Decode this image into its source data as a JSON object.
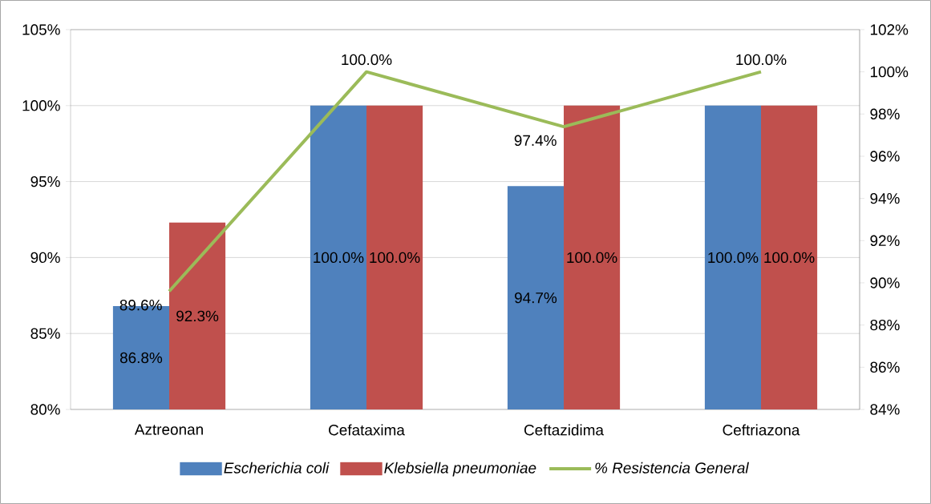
{
  "chart_data": {
    "type": "bar",
    "categories": [
      "Aztreonan",
      "Cefataxima",
      "Ceftazidima",
      "Ceftriazona"
    ],
    "series": [
      {
        "name": "Escherichia coli",
        "color": "#4f81bd",
        "values": [
          86.8,
          100,
          94.7,
          100
        ],
        "value_labels": [
          "86.8%",
          "100.0%",
          "94.7%",
          "100.0%"
        ]
      },
      {
        "name": "Klebsiella pneumoniae",
        "color": "#c0504d",
        "values": [
          92.3,
          100,
          100,
          100
        ],
        "value_labels": [
          "92.3%",
          "100.0%",
          "100.0%",
          "100.0%"
        ]
      },
      {
        "name": "% Resistencia General",
        "type": "line",
        "axis": "y2",
        "color": "#9bbb59",
        "values": [
          89.6,
          100,
          97.4,
          100
        ],
        "value_labels": [
          "89.6%",
          "100.0%",
          "97.4%",
          "100.0%"
        ]
      }
    ],
    "ylim": [
      80,
      105
    ],
    "yticks": [
      {
        "value": 80,
        "label": "80%"
      },
      {
        "value": 85,
        "label": "85%"
      },
      {
        "value": 90,
        "label": "90%"
      },
      {
        "value": 95,
        "label": "95%"
      },
      {
        "value": 100,
        "label": "100%"
      },
      {
        "value": 105,
        "label": "105%"
      }
    ],
    "y2lim": [
      84,
      102
    ],
    "y2ticks": [
      {
        "value": 84,
        "label": "84%"
      },
      {
        "value": 86,
        "label": "86%"
      },
      {
        "value": 88,
        "label": "88%"
      },
      {
        "value": 90,
        "label": "90%"
      },
      {
        "value": 92,
        "label": "92%"
      },
      {
        "value": 94,
        "label": "94%"
      },
      {
        "value": 96,
        "label": "96%"
      },
      {
        "value": 98,
        "label": "98%"
      },
      {
        "value": 100,
        "label": "100%"
      },
      {
        "value": 102,
        "label": "102%"
      }
    ],
    "grid": "y",
    "legend": "bottom"
  }
}
